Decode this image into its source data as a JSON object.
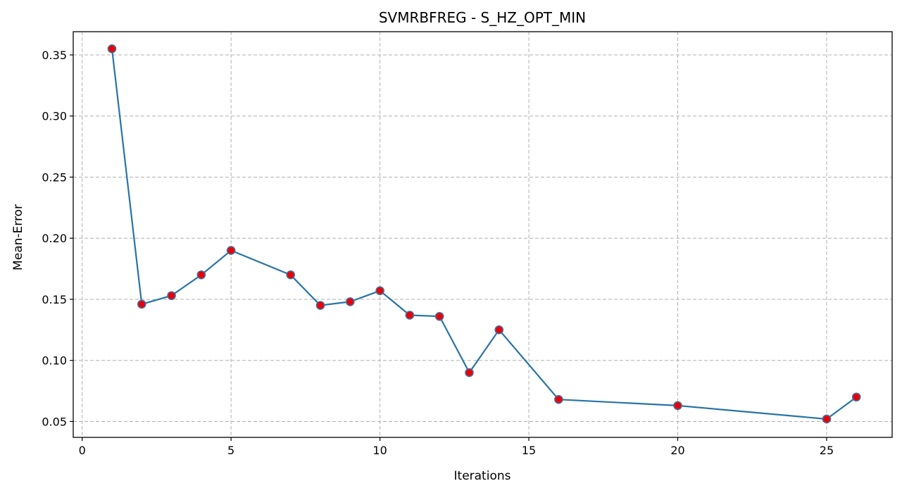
{
  "chart_data": {
    "type": "line",
    "title": "SVMRBFREG - S_HZ_OPT_MIN",
    "xlabel": "Iterations",
    "ylabel": "Mean-Error",
    "xlim": [
      -0.3,
      27.2
    ],
    "ylim": [
      0.037,
      0.369
    ],
    "xticks": [
      0,
      5,
      10,
      15,
      20,
      25
    ],
    "xtick_labels": [
      "0",
      "5",
      "10",
      "15",
      "20",
      "25"
    ],
    "yticks": [
      0.05,
      0.1,
      0.15,
      0.2,
      0.25,
      0.3,
      0.35
    ],
    "ytick_labels": [
      "0.05",
      "0.10",
      "0.15",
      "0.20",
      "0.25",
      "0.30",
      "0.35"
    ],
    "grid": true,
    "series": [
      {
        "name": "Mean-Error",
        "line_color": "#2874a6",
        "marker_face": "#e8000b",
        "marker_edge": "#4a6e96",
        "x": [
          1,
          2,
          3,
          4,
          5,
          7,
          8,
          9,
          10,
          11,
          12,
          13,
          14,
          16,
          20,
          25,
          26
        ],
        "y": [
          0.355,
          0.146,
          0.153,
          0.17,
          0.19,
          0.17,
          0.145,
          0.148,
          0.157,
          0.137,
          0.136,
          0.09,
          0.125,
          0.068,
          0.063,
          0.052,
          0.07
        ]
      }
    ]
  }
}
